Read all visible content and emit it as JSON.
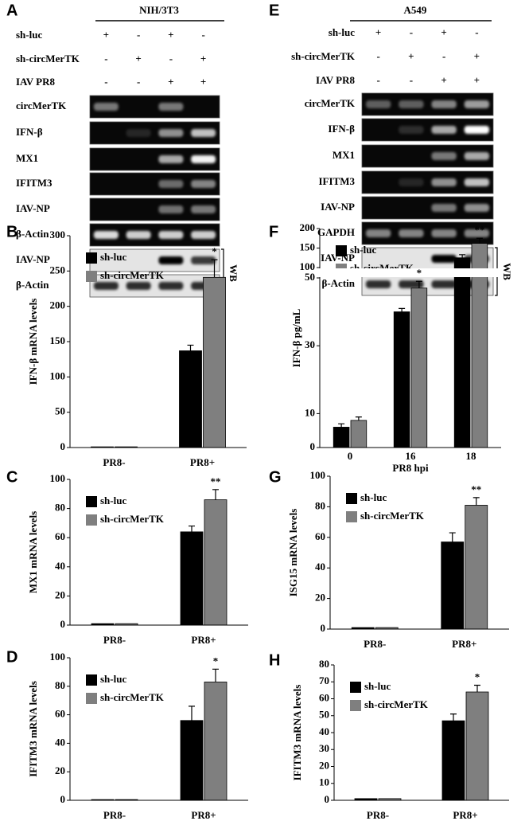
{
  "gels": [
    {
      "label": "A",
      "cell_line": "NIH/3T3",
      "conditions": [
        {
          "name": "sh-luc",
          "signs": [
            "+",
            "-",
            "+",
            "-"
          ]
        },
        {
          "name": "sh-circMerTK",
          "signs": [
            "-",
            "+",
            "-",
            "+"
          ]
        },
        {
          "name": "IAV PR8",
          "signs": [
            "-",
            "-",
            "+",
            "+"
          ]
        }
      ],
      "rows": [
        "circMerTK",
        "IFN-β",
        "MX1",
        "IFITM3",
        "IAV-NP",
        "β-Actin",
        "IAV-NP",
        "β-Actin"
      ],
      "wb_label": "WB"
    },
    {
      "label": "E",
      "cell_line": "A549",
      "conditions": [
        {
          "name": "sh-luc",
          "signs": [
            "+",
            "-",
            "+",
            "-"
          ]
        },
        {
          "name": "sh-circMerTK",
          "signs": [
            "-",
            "+",
            "-",
            "+"
          ]
        },
        {
          "name": "IAV PR8",
          "signs": [
            "-",
            "-",
            "+",
            "+"
          ]
        }
      ],
      "rows": [
        "circMerTK",
        "IFN-β",
        "MX1",
        "IFITM3",
        "IAV-NP",
        "GAPDH",
        "IAV-NP",
        "β-Actin"
      ],
      "wb_label": "WB"
    }
  ],
  "chart_data": [
    {
      "type": "bar",
      "label": "B",
      "y_label": "IFN-β mRNA levels",
      "categories": [
        "PR8-",
        "PR8+"
      ],
      "series": [
        {
          "name": "sh-luc",
          "color": "#000000",
          "values": [
            1,
            137
          ],
          "errors": [
            0,
            8
          ]
        },
        {
          "name": "sh-circMerTK",
          "color": "#7f7f7f",
          "values": [
            1,
            241
          ],
          "errors": [
            0,
            25
          ]
        }
      ],
      "ylim": [
        0,
        300
      ],
      "yticks": [
        0,
        50,
        100,
        150,
        200,
        250,
        300
      ],
      "legend": "upper left",
      "annotations": [
        {
          "text": "*",
          "category": 1,
          "series": 1
        }
      ]
    },
    {
      "type": "bar",
      "label": "C",
      "y_label": "MX1 mRNA levels",
      "categories": [
        "PR8-",
        "PR8+"
      ],
      "series": [
        {
          "name": "sh-luc",
          "color": "#000000",
          "values": [
            1,
            64
          ],
          "errors": [
            0,
            4
          ]
        },
        {
          "name": "sh-circMerTK",
          "color": "#7f7f7f",
          "values": [
            1,
            86
          ],
          "errors": [
            0,
            7
          ]
        }
      ],
      "ylim": [
        0,
        100
      ],
      "yticks": [
        0,
        20,
        40,
        60,
        80,
        100
      ],
      "legend": "upper left",
      "annotations": [
        {
          "text": "**",
          "category": 1,
          "series": 1
        }
      ]
    },
    {
      "type": "bar",
      "label": "D",
      "y_label": "IFITM3 mRNA levels",
      "categories": [
        "PR8-",
        "PR8+"
      ],
      "series": [
        {
          "name": "sh-luc",
          "color": "#000000",
          "values": [
            0.5,
            56
          ],
          "errors": [
            0,
            10
          ]
        },
        {
          "name": "sh-circMerTK",
          "color": "#7f7f7f",
          "values": [
            0.5,
            83
          ],
          "errors": [
            0,
            9
          ]
        }
      ],
      "ylim": [
        0,
        100
      ],
      "yticks": [
        0,
        20,
        40,
        60,
        80,
        100
      ],
      "legend": "upper left",
      "annotations": [
        {
          "text": "*",
          "category": 1,
          "series": 1
        }
      ]
    },
    {
      "type": "bar",
      "label": "F",
      "y_label": "IFN-β pg/mL",
      "x_label": "PR8 hpi",
      "categories": [
        "0",
        "16",
        "18"
      ],
      "series": [
        {
          "name": "sh-luc",
          "color": "#000000",
          "values": [
            6,
            40,
            125
          ],
          "errors": [
            1,
            1,
            8
          ]
        },
        {
          "name": "sh-circMerTK",
          "color": "#7f7f7f",
          "values": [
            8,
            47,
            162
          ],
          "errors": [
            1,
            2,
            13
          ]
        }
      ],
      "broken_axis": true,
      "ylim_lower": [
        0,
        50
      ],
      "yticks_lower": [
        0,
        10,
        30,
        50
      ],
      "ylim_upper": [
        100,
        200
      ],
      "yticks_upper": [
        100,
        150,
        200
      ],
      "legend": "upper left",
      "annotations": [
        {
          "text": "*",
          "category": 1,
          "series": 1
        },
        {
          "text": "**",
          "category": 2,
          "series": 1
        }
      ]
    },
    {
      "type": "bar",
      "label": "G",
      "y_label": "ISG15 mRNA levels",
      "categories": [
        "PR8-",
        "PR8+"
      ],
      "series": [
        {
          "name": "sh-luc",
          "color": "#000000",
          "values": [
            1,
            57
          ],
          "errors": [
            0,
            6
          ]
        },
        {
          "name": "sh-circMerTK",
          "color": "#7f7f7f",
          "values": [
            1,
            81
          ],
          "errors": [
            0,
            5
          ]
        }
      ],
      "ylim": [
        0,
        100
      ],
      "yticks": [
        0,
        20,
        40,
        60,
        80,
        100
      ],
      "legend": "upper left",
      "annotations": [
        {
          "text": "**",
          "category": 1,
          "series": 1
        }
      ]
    },
    {
      "type": "bar",
      "label": "H",
      "y_label": "IFITM3 mRNA levels",
      "categories": [
        "PR8-",
        "PR8+"
      ],
      "series": [
        {
          "name": "sh-luc",
          "color": "#000000",
          "values": [
            1,
            47
          ],
          "errors": [
            0,
            4
          ]
        },
        {
          "name": "sh-circMerTK",
          "color": "#7f7f7f",
          "values": [
            1,
            64
          ],
          "errors": [
            0,
            4
          ]
        }
      ],
      "ylim": [
        0,
        80
      ],
      "yticks": [
        0,
        10,
        20,
        30,
        40,
        50,
        60,
        70,
        80
      ],
      "legend": "upper left",
      "annotations": [
        {
          "text": "*",
          "category": 1,
          "series": 1
        }
      ]
    }
  ]
}
